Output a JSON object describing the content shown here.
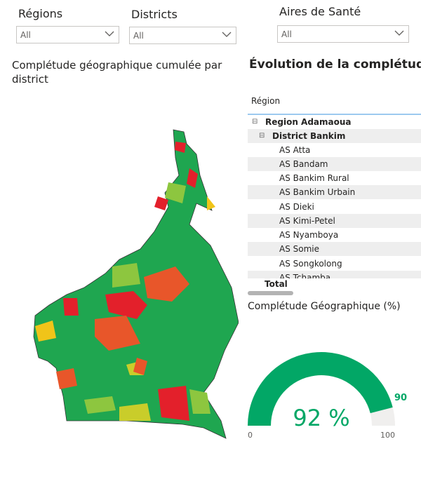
{
  "filters": [
    {
      "label": "Régions",
      "value": "All"
    },
    {
      "label": "Districts",
      "value": "All"
    },
    {
      "label": "Aires de Santé",
      "value": "All"
    }
  ],
  "map": {
    "title": "Complétude géographique cumulée par district",
    "colors": {
      "good": "#1fa650",
      "mid": "#8dc63f",
      "warn": "#f0c419",
      "orange": "#e8562a",
      "bad": "#e3202b"
    }
  },
  "matrix": {
    "title": "Évolution de la complétude",
    "column_header": "Région",
    "region": "Region Adamaoua",
    "district": "District Bankim",
    "items": [
      "AS Atta",
      "AS Bandam",
      "AS Bankim Rural",
      "AS Bankim Urbain",
      "AS Dieki",
      "AS Kimi-Petel",
      "AS Nyamboya",
      "AS Somie",
      "AS Songkolong",
      "AS Tchamba"
    ],
    "total_label": "Total",
    "expand_icon": "minus-square-icon"
  },
  "gauge": {
    "title": "Complétude Géographique (%)",
    "value": 92,
    "value_label": "92 %",
    "target": 90,
    "target_label": "90",
    "min": 0,
    "max": 100,
    "min_label": "0",
    "max_label": "100",
    "color": "#02a766",
    "track": "#f0efee"
  }
}
